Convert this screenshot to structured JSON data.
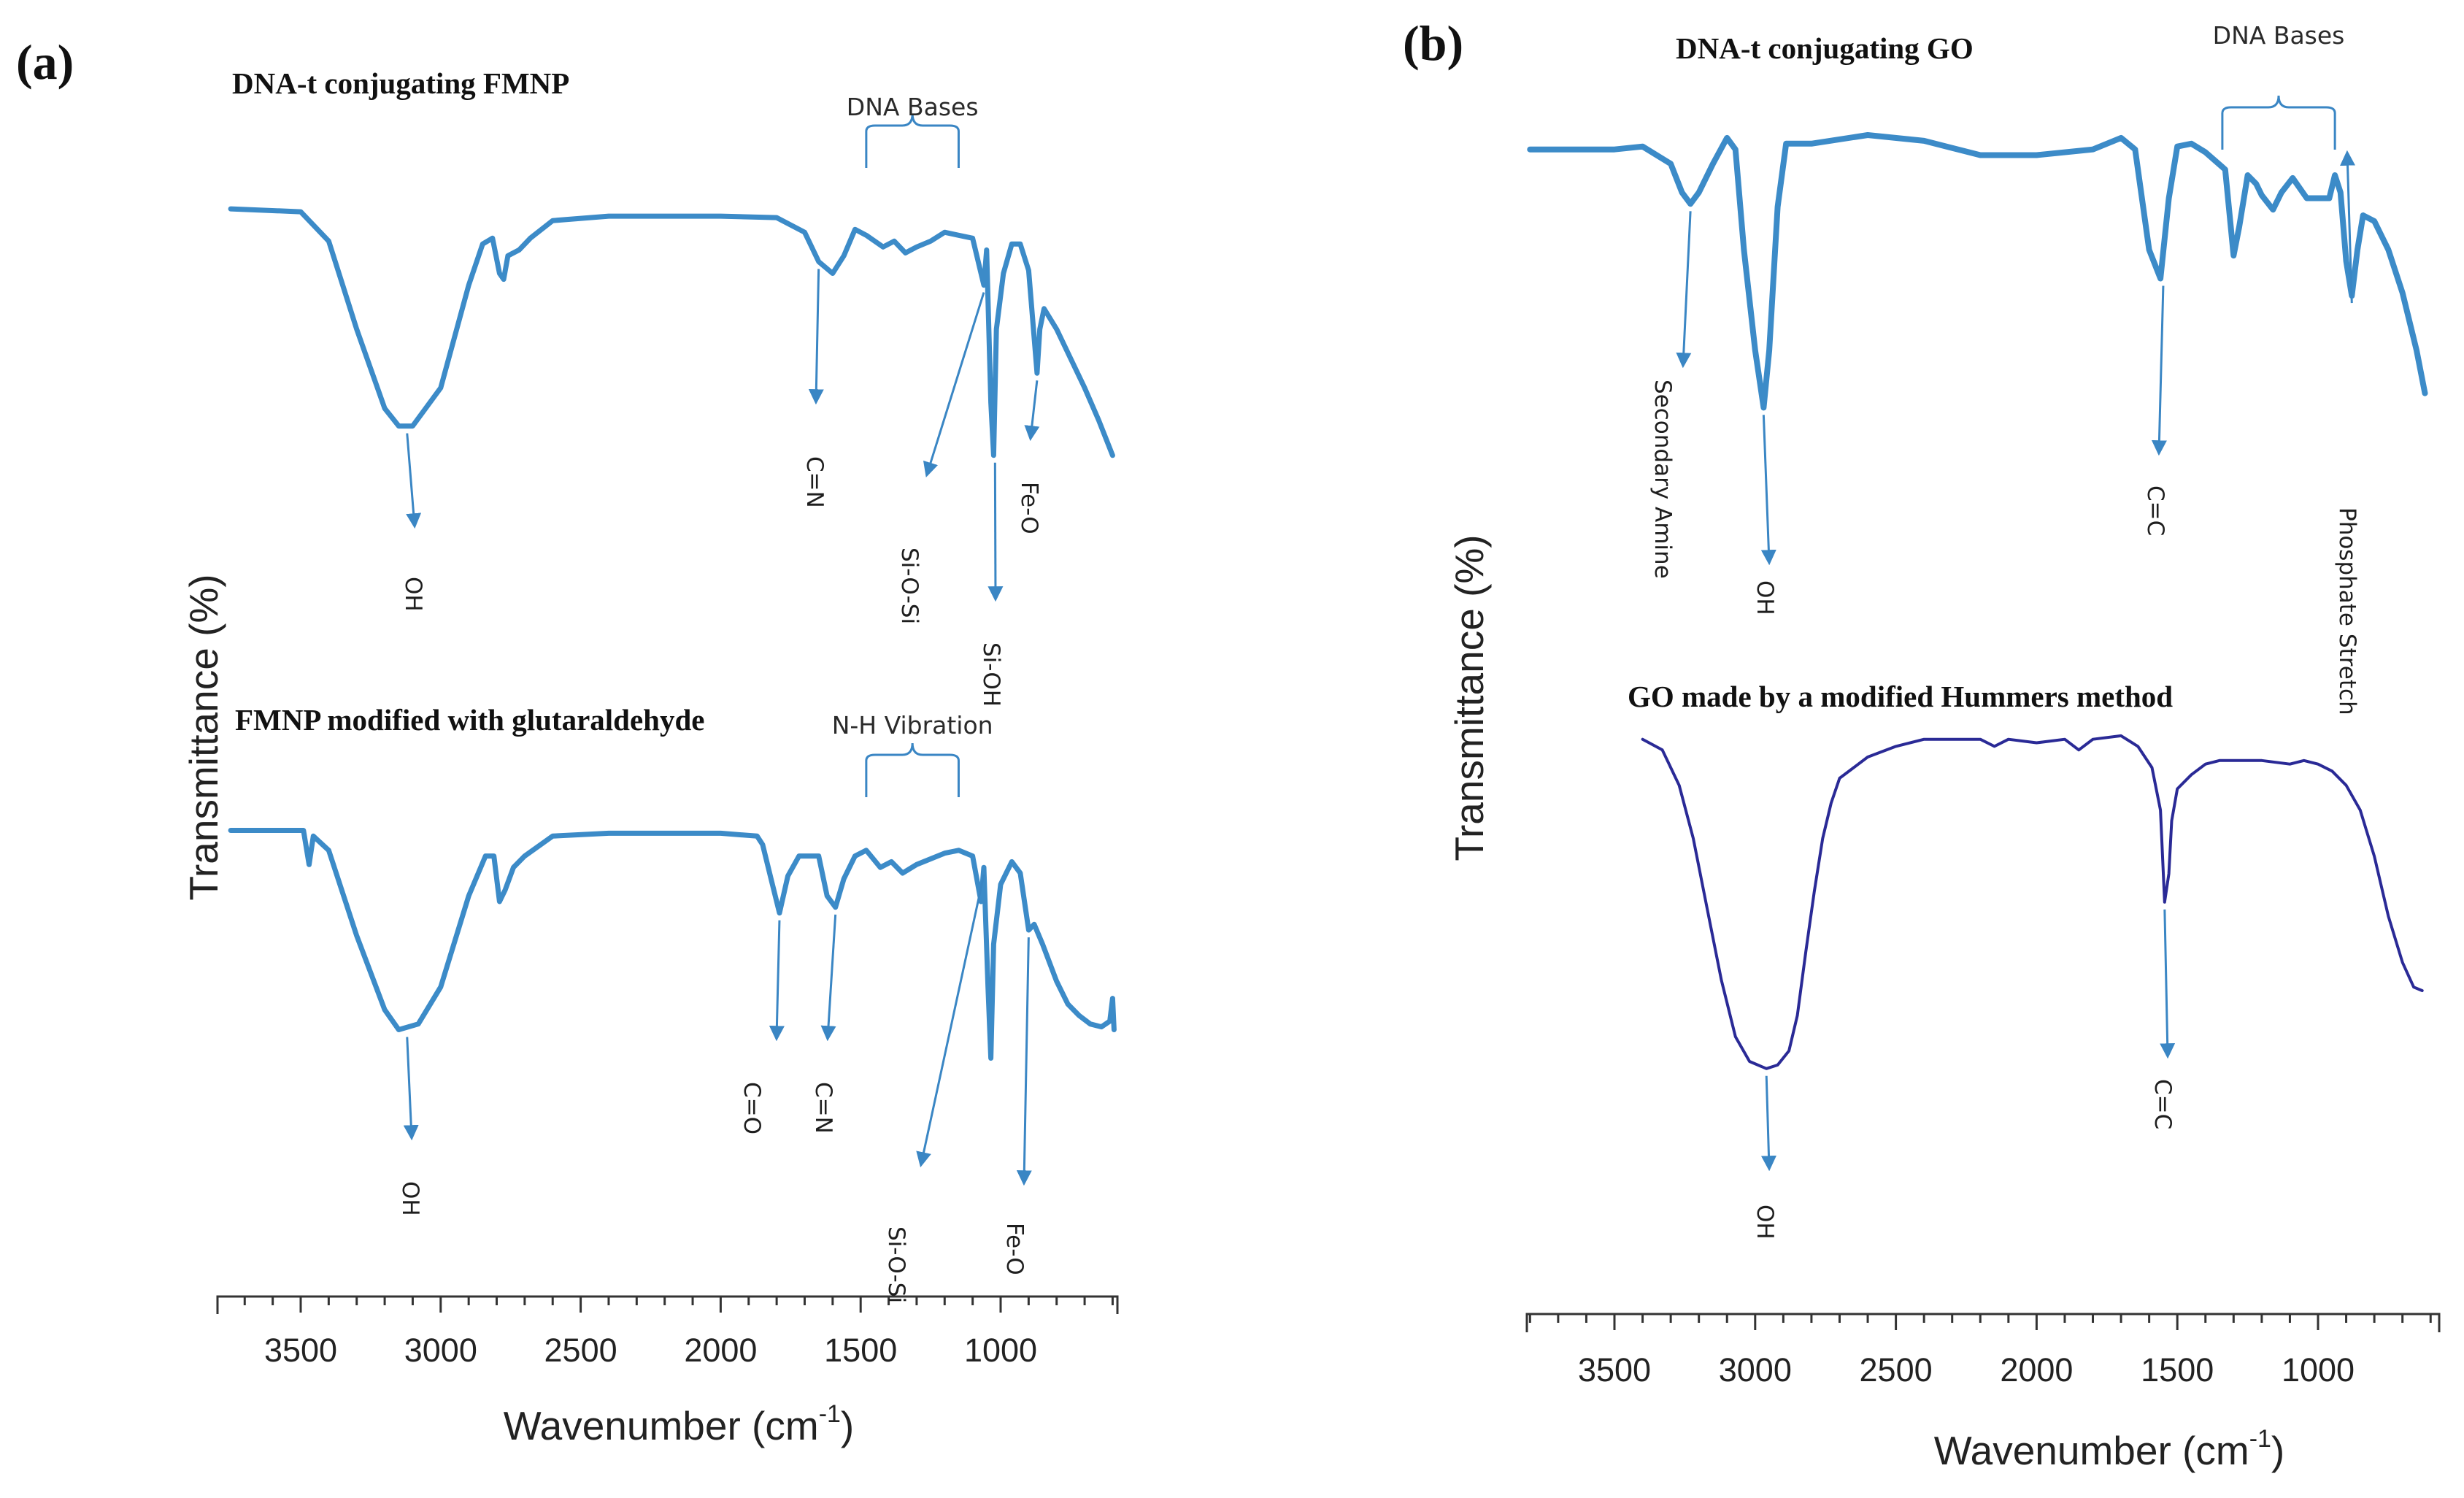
{
  "colors": {
    "spectrum_blue": "#3c8bc8",
    "spectrum_navy": "#2a2a96",
    "annotation_blue": "#3a86c4"
  },
  "chart_data": [
    {
      "type": "line",
      "panel": "(a)",
      "xlabel": "Wavenumber (cm-1)",
      "ylabel": "Transmittance (%)",
      "xlim": [
        3750,
        550
      ],
      "x_ticks": [
        "3500",
        "3000",
        "2500",
        "2000",
        "1500",
        "1000"
      ],
      "legend": "none",
      "grid": false,
      "series": [
        {
          "name": "DNA-t conjugating FMNP",
          "points": [
            [
              3750,
              0.96
            ],
            [
              3500,
              0.95
            ],
            [
              3400,
              0.85
            ],
            [
              3300,
              0.55
            ],
            [
              3200,
              0.28
            ],
            [
              3150,
              0.22
            ],
            [
              3100,
              0.22
            ],
            [
              3000,
              0.35
            ],
            [
              2900,
              0.7
            ],
            [
              2850,
              0.84
            ],
            [
              2815,
              0.86
            ],
            [
              2790,
              0.74
            ],
            [
              2775,
              0.72
            ],
            [
              2760,
              0.8
            ],
            [
              2720,
              0.82
            ],
            [
              2680,
              0.86
            ],
            [
              2600,
              0.92
            ],
            [
              2400,
              0.935
            ],
            [
              2000,
              0.935
            ],
            [
              1800,
              0.93
            ],
            [
              1700,
              0.88
            ],
            [
              1650,
              0.78
            ],
            [
              1600,
              0.74
            ],
            [
              1560,
              0.8
            ],
            [
              1520,
              0.89
            ],
            [
              1480,
              0.87
            ],
            [
              1420,
              0.83
            ],
            [
              1380,
              0.85
            ],
            [
              1340,
              0.81
            ],
            [
              1300,
              0.83
            ],
            [
              1250,
              0.85
            ],
            [
              1200,
              0.88
            ],
            [
              1150,
              0.87
            ],
            [
              1100,
              0.86
            ],
            [
              1060,
              0.7
            ],
            [
              1050,
              0.82
            ],
            [
              1035,
              0.3
            ],
            [
              1025,
              0.12
            ],
            [
              1015,
              0.55
            ],
            [
              990,
              0.74
            ],
            [
              960,
              0.84
            ],
            [
              930,
              0.84
            ],
            [
              900,
              0.75
            ],
            [
              870,
              0.4
            ],
            [
              860,
              0.55
            ],
            [
              845,
              0.62
            ],
            [
              800,
              0.55
            ],
            [
              750,
              0.45
            ],
            [
              700,
              0.35
            ],
            [
              650,
              0.24
            ],
            [
              600,
              0.12
            ]
          ],
          "annotations": [
            {
              "label": "OH",
              "x": 3120
            },
            {
              "label": "C=N",
              "x": 1650
            },
            {
              "label": "Si-O-Si",
              "x": 1060
            },
            {
              "label": "Si-OH",
              "x": 1020
            },
            {
              "label": "Fe-O",
              "x": 870
            }
          ],
          "bracket": {
            "label": "DNA Bases",
            "from": 1480,
            "to": 1150
          }
        },
        {
          "name": "FMNP modified with glutaraldehyde",
          "points": [
            [
              3750,
              0.95
            ],
            [
              3490,
              0.95
            ],
            [
              3470,
              0.83
            ],
            [
              3455,
              0.93
            ],
            [
              3400,
              0.88
            ],
            [
              3300,
              0.58
            ],
            [
              3200,
              0.32
            ],
            [
              3150,
              0.25
            ],
            [
              3080,
              0.27
            ],
            [
              3000,
              0.4
            ],
            [
              2900,
              0.72
            ],
            [
              2840,
              0.86
            ],
            [
              2810,
              0.86
            ],
            [
              2790,
              0.7
            ],
            [
              2770,
              0.74
            ],
            [
              2740,
              0.82
            ],
            [
              2700,
              0.86
            ],
            [
              2600,
              0.93
            ],
            [
              2400,
              0.94
            ],
            [
              2000,
              0.94
            ],
            [
              1870,
              0.93
            ],
            [
              1850,
              0.9
            ],
            [
              1820,
              0.78
            ],
            [
              1790,
              0.66
            ],
            [
              1760,
              0.79
            ],
            [
              1720,
              0.86
            ],
            [
              1650,
              0.86
            ],
            [
              1620,
              0.72
            ],
            [
              1590,
              0.68
            ],
            [
              1560,
              0.78
            ],
            [
              1520,
              0.86
            ],
            [
              1480,
              0.88
            ],
            [
              1430,
              0.82
            ],
            [
              1390,
              0.84
            ],
            [
              1350,
              0.8
            ],
            [
              1300,
              0.83
            ],
            [
              1250,
              0.85
            ],
            [
              1200,
              0.87
            ],
            [
              1150,
              0.88
            ],
            [
              1100,
              0.86
            ],
            [
              1070,
              0.7
            ],
            [
              1060,
              0.82
            ],
            [
              1045,
              0.4
            ],
            [
              1035,
              0.15
            ],
            [
              1025,
              0.55
            ],
            [
              1000,
              0.76
            ],
            [
              960,
              0.84
            ],
            [
              930,
              0.8
            ],
            [
              900,
              0.6
            ],
            [
              880,
              0.62
            ],
            [
              850,
              0.55
            ],
            [
              800,
              0.42
            ],
            [
              760,
              0.34
            ],
            [
              720,
              0.3
            ],
            [
              680,
              0.27
            ],
            [
              640,
              0.26
            ],
            [
              610,
              0.28
            ],
            [
              600,
              0.36
            ],
            [
              595,
              0.25
            ]
          ],
          "annotations": [
            {
              "label": "OH",
              "x": 3120
            },
            {
              "label": "C=O",
              "x": 1790
            },
            {
              "label": "C=N",
              "x": 1590
            },
            {
              "label": "Si-O-Si",
              "x": 1060
            },
            {
              "label": "Fe-O",
              "x": 900
            }
          ],
          "bracket": {
            "label": "N-H Vibration",
            "from": 1480,
            "to": 1150
          }
        }
      ]
    },
    {
      "type": "line",
      "panel": "(b)",
      "xlabel": "Wavenumber (cm-1)",
      "ylabel": "Transmittance (%)",
      "xlim": [
        3800,
        600
      ],
      "x_ticks": [
        "3500",
        "3000",
        "2500",
        "2000",
        "1500",
        "1000"
      ],
      "legend": "none",
      "grid": false,
      "series": [
        {
          "name": "DNA-t conjugating GO",
          "points": [
            [
              3800,
              0.95
            ],
            [
              3500,
              0.95
            ],
            [
              3400,
              0.96
            ],
            [
              3300,
              0.9
            ],
            [
              3260,
              0.8
            ],
            [
              3230,
              0.76
            ],
            [
              3200,
              0.8
            ],
            [
              3150,
              0.9
            ],
            [
              3100,
              0.99
            ],
            [
              3070,
              0.95
            ],
            [
              3040,
              0.6
            ],
            [
              3000,
              0.25
            ],
            [
              2970,
              0.05
            ],
            [
              2950,
              0.25
            ],
            [
              2920,
              0.75
            ],
            [
              2890,
              0.97
            ],
            [
              2800,
              0.97
            ],
            [
              2600,
              1.0
            ],
            [
              2400,
              0.98
            ],
            [
              2200,
              0.93
            ],
            [
              2000,
              0.93
            ],
            [
              1800,
              0.95
            ],
            [
              1700,
              0.99
            ],
            [
              1650,
              0.95
            ],
            [
              1600,
              0.6
            ],
            [
              1560,
              0.5
            ],
            [
              1530,
              0.78
            ],
            [
              1500,
              0.96
            ],
            [
              1450,
              0.97
            ],
            [
              1400,
              0.94
            ],
            [
              1330,
              0.88
            ],
            [
              1300,
              0.58
            ],
            [
              1280,
              0.68
            ],
            [
              1250,
              0.86
            ],
            [
              1220,
              0.83
            ],
            [
              1200,
              0.79
            ],
            [
              1160,
              0.74
            ],
            [
              1130,
              0.8
            ],
            [
              1090,
              0.85
            ],
            [
              1040,
              0.78
            ],
            [
              1000,
              0.78
            ],
            [
              960,
              0.78
            ],
            [
              940,
              0.86
            ],
            [
              920,
              0.8
            ],
            [
              900,
              0.56
            ],
            [
              880,
              0.44
            ],
            [
              860,
              0.6
            ],
            [
              840,
              0.72
            ],
            [
              800,
              0.7
            ],
            [
              750,
              0.6
            ],
            [
              700,
              0.45
            ],
            [
              650,
              0.25
            ],
            [
              620,
              0.1
            ]
          ],
          "annotations": [
            {
              "label": "Secondary Amine",
              "x": 3230
            },
            {
              "label": "OH",
              "x": 2970
            },
            {
              "label": "C=C",
              "x": 1550
            },
            {
              "label": "Phosphate Stretch",
              "x": 880
            }
          ],
          "bracket": {
            "label": "DNA Bases",
            "from": 1340,
            "to": 940
          }
        },
        {
          "name": "GO made by a modified Hummers method",
          "points": [
            [
              3400,
              0.98
            ],
            [
              3330,
              0.95
            ],
            [
              3270,
              0.85
            ],
            [
              3220,
              0.7
            ],
            [
              3170,
              0.5
            ],
            [
              3120,
              0.3
            ],
            [
              3070,
              0.14
            ],
            [
              3020,
              0.07
            ],
            [
              2960,
              0.05
            ],
            [
              2920,
              0.06
            ],
            [
              2880,
              0.1
            ],
            [
              2850,
              0.2
            ],
            [
              2820,
              0.38
            ],
            [
              2790,
              0.55
            ],
            [
              2760,
              0.7
            ],
            [
              2730,
              0.8
            ],
            [
              2700,
              0.87
            ],
            [
              2650,
              0.9
            ],
            [
              2600,
              0.93
            ],
            [
              2500,
              0.96
            ],
            [
              2400,
              0.98
            ],
            [
              2200,
              0.98
            ],
            [
              2150,
              0.96
            ],
            [
              2100,
              0.98
            ],
            [
              2000,
              0.97
            ],
            [
              1900,
              0.98
            ],
            [
              1850,
              0.95
            ],
            [
              1800,
              0.98
            ],
            [
              1700,
              0.99
            ],
            [
              1640,
              0.96
            ],
            [
              1590,
              0.9
            ],
            [
              1560,
              0.78
            ],
            [
              1545,
              0.52
            ],
            [
              1530,
              0.6
            ],
            [
              1520,
              0.75
            ],
            [
              1500,
              0.84
            ],
            [
              1450,
              0.88
            ],
            [
              1400,
              0.91
            ],
            [
              1350,
              0.92
            ],
            [
              1300,
              0.92
            ],
            [
              1200,
              0.92
            ],
            [
              1100,
              0.91
            ],
            [
              1050,
              0.92
            ],
            [
              1000,
              0.91
            ],
            [
              950,
              0.89
            ],
            [
              900,
              0.85
            ],
            [
              850,
              0.78
            ],
            [
              800,
              0.65
            ],
            [
              750,
              0.48
            ],
            [
              700,
              0.35
            ],
            [
              660,
              0.28
            ],
            [
              630,
              0.27
            ]
          ],
          "annotations": [
            {
              "label": "OH",
              "x": 2960
            },
            {
              "label": "C=C",
              "x": 1545
            }
          ]
        }
      ]
    }
  ],
  "figure": {
    "panel_a_label": "(a)",
    "panel_b_label": "(b)",
    "a_top_title": "DNA-t conjugating FMNP",
    "a_bottom_title": "FMNP modified with glutaraldehyde",
    "b_top_title": "DNA-t conjugating GO",
    "b_bottom_title": "GO made by a modified Hummers method",
    "ylabel": "Transmittance (%)",
    "xlabel": "Wavenumber (cm",
    "xlabel_sup": "-1",
    "xlabel_close": ")"
  }
}
